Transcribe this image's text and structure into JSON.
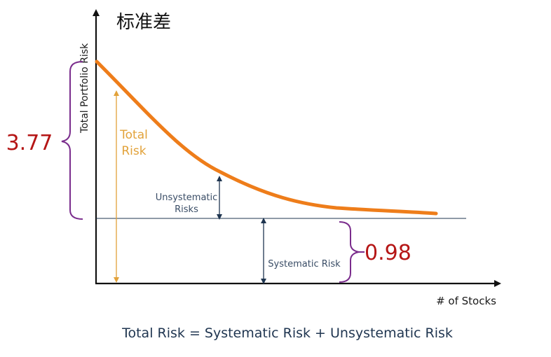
{
  "title": "标准差",
  "y_axis_label": "Total Portfolio Risk",
  "x_axis_label": "# of Stocks",
  "labels": {
    "total_risk": [
      "Total",
      "Risk"
    ],
    "unsystematic": [
      "Unsystematic",
      "Risks"
    ],
    "systematic": "Systematic Risk"
  },
  "values": {
    "total_bracket": "3.77",
    "systematic_bracket": "0.98"
  },
  "formula": "Total Risk = Systematic Risk + Unsystematic Risk",
  "colors": {
    "curve": "#ee7d1a",
    "total_risk": "#e2a23a",
    "navy": "#1f3550",
    "bracket": "#7a2c8c",
    "value_red": "#b51616",
    "axis": "#111111"
  }
}
